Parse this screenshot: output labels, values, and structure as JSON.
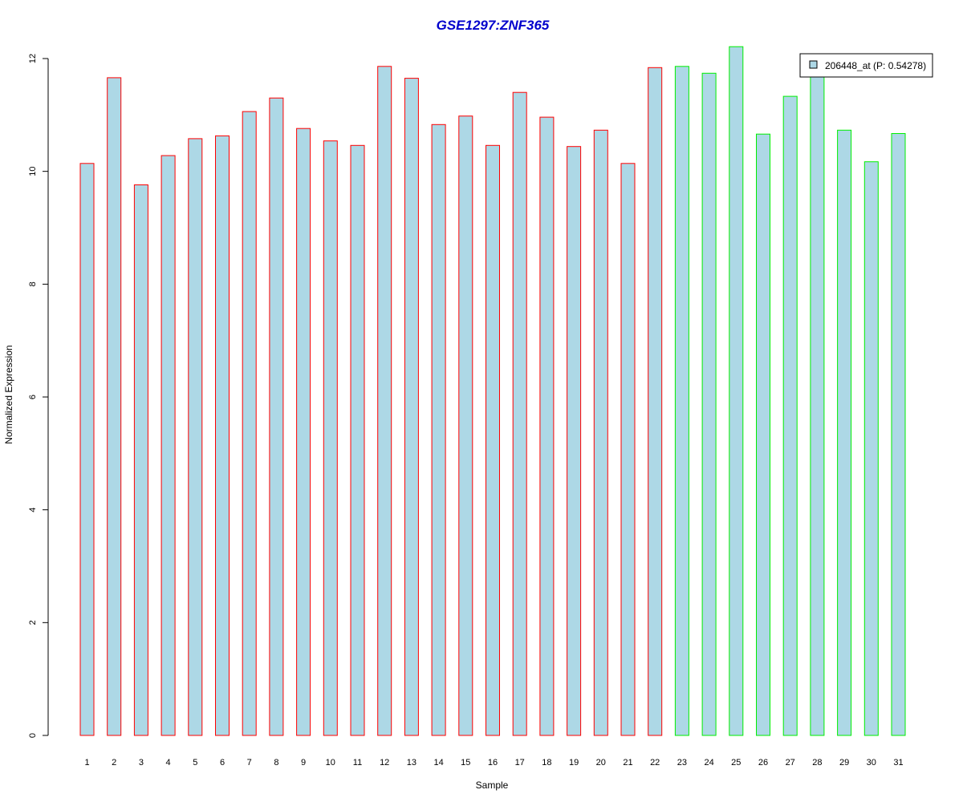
{
  "chart_data": {
    "type": "bar",
    "title": "GSE1297:ZNF365",
    "title_color": "#0000cc",
    "xlabel": "Sample",
    "ylabel": "Normalized Expression",
    "ylim": [
      0,
      12
    ],
    "yticks": [
      0,
      2,
      4,
      6,
      8,
      10,
      12
    ],
    "grid": false,
    "legend_position": "top-right",
    "legend": [
      {
        "label": "206448_at (P: 0.54278)",
        "fill": "#add8e6"
      }
    ],
    "bar_fill": "#add8e6",
    "categories": [
      "1",
      "2",
      "3",
      "4",
      "5",
      "6",
      "7",
      "8",
      "9",
      "10",
      "11",
      "12",
      "13",
      "14",
      "15",
      "16",
      "17",
      "18",
      "19",
      "20",
      "21",
      "22",
      "23",
      "24",
      "25",
      "26",
      "27",
      "28",
      "29",
      "30",
      "31"
    ],
    "values": [
      10.14,
      11.66,
      9.76,
      10.28,
      10.58,
      10.63,
      11.06,
      11.3,
      10.76,
      10.54,
      10.46,
      11.86,
      11.65,
      10.83,
      10.98,
      10.46,
      11.4,
      10.96,
      10.44,
      10.73,
      10.14,
      11.84,
      11.86,
      11.74,
      12.21,
      10.66,
      11.33,
      11.7,
      10.73,
      10.17,
      10.67
    ],
    "groups": [
      {
        "outline": "#ff0000",
        "samples": [
          "1",
          "2",
          "3",
          "4",
          "5",
          "6",
          "7",
          "8",
          "9",
          "10",
          "11",
          "12",
          "13",
          "14",
          "15",
          "16",
          "17",
          "18",
          "19",
          "20",
          "21",
          "22"
        ]
      },
      {
        "outline": "#00ee00",
        "samples": [
          "23",
          "24",
          "25",
          "26",
          "27",
          "28",
          "29",
          "30",
          "31"
        ]
      }
    ]
  }
}
